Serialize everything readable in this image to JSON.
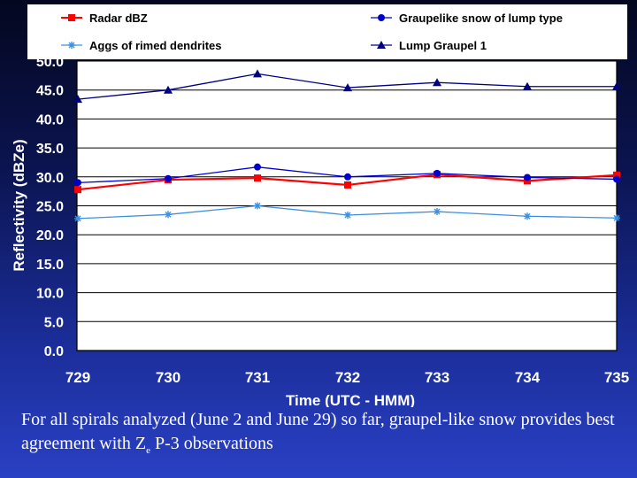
{
  "chart_data": {
    "type": "line",
    "categories": [
      "729",
      "730",
      "731",
      "732",
      "733",
      "734",
      "735"
    ],
    "xlabel": "Time (UTC - HMM)",
    "ylabel": "Reflectivity (dBZe)",
    "ylim": [
      0,
      50
    ],
    "yticks": [
      "0.0",
      "5.0",
      "10.0",
      "15.0",
      "20.0",
      "25.0",
      "30.0",
      "35.0",
      "40.0",
      "45.0",
      "50.0"
    ],
    "legend_position": "top",
    "series": [
      {
        "name": "Radar dBZ",
        "color": "#ff0000",
        "marker": "square",
        "values": [
          27.8,
          29.5,
          29.8,
          28.6,
          30.4,
          29.3,
          30.3
        ]
      },
      {
        "name": "Graupelike snow of lump type",
        "color": "#0000cc",
        "marker": "circle",
        "values": [
          29.0,
          29.7,
          31.7,
          30.0,
          30.6,
          29.9,
          29.6
        ]
      },
      {
        "name": "Aggs of rimed dendrites",
        "color": "#3d8fe0",
        "marker": "star",
        "values": [
          22.8,
          23.5,
          25.0,
          23.4,
          24.0,
          23.2,
          22.9
        ]
      },
      {
        "name": "Lump Graupel 1",
        "color": "#000080",
        "marker": "triangle",
        "values": [
          43.4,
          45.0,
          47.8,
          45.4,
          46.3,
          45.6,
          45.6
        ]
      }
    ]
  },
  "caption": {
    "text_before_sub": "For all spirals analyzed (June 2 and June 29) so far, graupel-like snow provides best agreement with Z",
    "subscript": "e",
    "text_after_sub": " P-3 observations"
  }
}
